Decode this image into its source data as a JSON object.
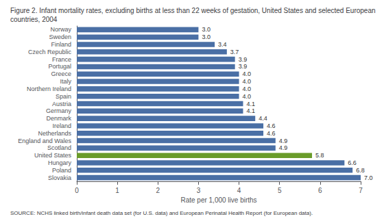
{
  "chart_data": {
    "type": "bar",
    "orientation": "horizontal",
    "title": "Figure 2. Infant mortality rates, excluding births at less than 22 weeks of gestation, United States and selected European countries, 2004",
    "annotations": [
      "SOURCE: NCHS linked birth/infant death data set (for U.S. data) and European Perinatal Health Report (for European data)."
    ],
    "xlabel": "Rate per 1,000 live births",
    "categories": [
      "Slovakia",
      "Poland",
      "Hungary",
      "United States",
      "Scotland",
      "England and Wales",
      "Netherlands",
      "Ireland",
      "Denmark",
      "Germany",
      "Austria",
      "Spain",
      "Northern Ireland",
      "Italy",
      "Greece",
      "Portugal",
      "France",
      "Czech Republic",
      "Finland",
      "Sweden",
      "Norway"
    ],
    "values": [
      7.0,
      6.8,
      6.6,
      5.8,
      4.9,
      4.9,
      4.6,
      4.6,
      4.4,
      4.1,
      4.1,
      4.0,
      4.0,
      4.0,
      4.0,
      3.9,
      3.9,
      3.7,
      3.4,
      3.0,
      3.0
    ],
    "value_labels": [
      "7.0",
      "6.8",
      "6.6",
      "5.8",
      "4.9",
      "4.9",
      "4.6",
      "4.6",
      "4.4",
      "4.1",
      "4.1",
      "4.0",
      "4.0",
      "4.0",
      "4.0",
      "3.9",
      "3.9",
      "3.7",
      "3.4",
      "3.0",
      "3.0"
    ],
    "colors": [
      "#4a6fa5",
      "#4a6fa5",
      "#4a6fa5",
      "#6a9c2a",
      "#4a6fa5",
      "#4a6fa5",
      "#4a6fa5",
      "#4a6fa5",
      "#4a6fa5",
      "#4a6fa5",
      "#4a6fa5",
      "#4a6fa5",
      "#4a6fa5",
      "#4a6fa5",
      "#4a6fa5",
      "#4a6fa5",
      "#4a6fa5",
      "#4a6fa5",
      "#4a6fa5",
      "#4a6fa5",
      "#4a6fa5"
    ],
    "data_labels": true,
    "xlim": [
      0,
      7
    ],
    "xticks": [
      0,
      1,
      2,
      3,
      4,
      5,
      6,
      7
    ],
    "grid": false
  }
}
